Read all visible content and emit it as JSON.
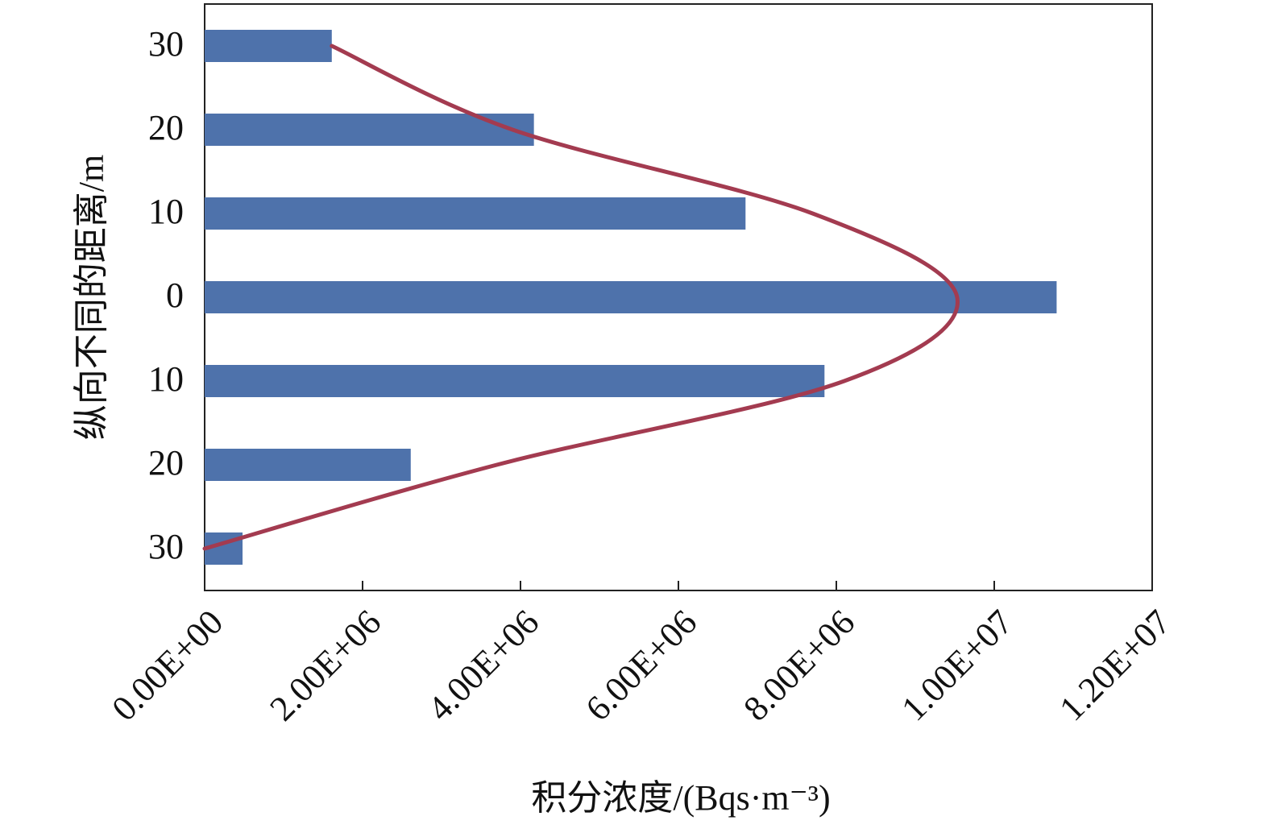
{
  "chart_data": {
    "type": "bar",
    "orientation": "horizontal",
    "x_label": "积分浓度/(Bqs·m⁻³)",
    "y_label": "纵向不同的距离/m",
    "categories": [
      "30",
      "20",
      "10",
      "0",
      "10",
      "20",
      "30"
    ],
    "series": [
      {
        "type": "bar",
        "color": "#4e72ab",
        "values": [
          1610000,
          4170000,
          6850000,
          10790000,
          7850000,
          2610000,
          480000
        ]
      },
      {
        "type": "line",
        "color": "#a33b50",
        "values": [
          1610000,
          3900000,
          7700000,
          9530000,
          8100000,
          3700000,
          0
        ]
      }
    ],
    "xlim": [
      0,
      12000000
    ],
    "xticks": [
      {
        "value": 0,
        "label": "0.00E+00"
      },
      {
        "value": 2000000,
        "label": "2.00E+06"
      },
      {
        "value": 4000000,
        "label": "4.00E+06"
      },
      {
        "value": 6000000,
        "label": "6.00E+06"
      },
      {
        "value": 8000000,
        "label": "8.00E+06"
      },
      {
        "value": 10000000,
        "label": "1.00E+07"
      },
      {
        "value": 12000000,
        "label": "1.20E+07"
      }
    ],
    "grid": false
  }
}
